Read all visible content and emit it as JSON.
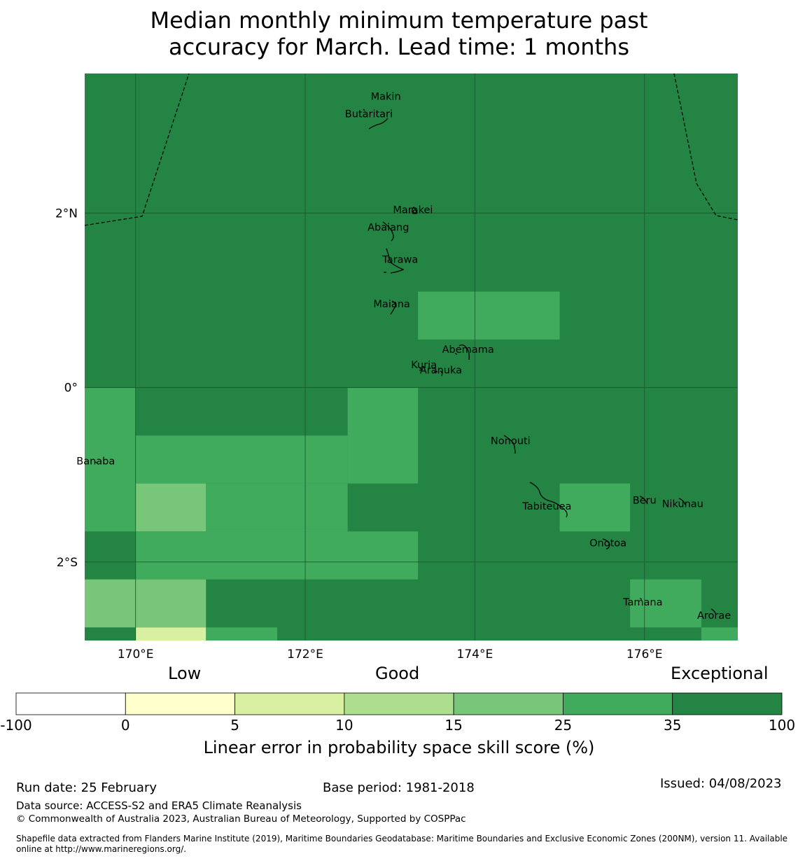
{
  "title_lines": [
    "Median monthly minimum temperature past",
    "accuracy for March. Lead time: 1 months"
  ],
  "map": {
    "lon_range": [
      169.4,
      177.1
    ],
    "lat_range": [
      -2.9,
      3.6
    ],
    "lon_ticks": [
      {
        "value": 170,
        "label": "170°E"
      },
      {
        "value": 172,
        "label": "172°E"
      },
      {
        "value": 174,
        "label": "174°E"
      },
      {
        "value": 176,
        "label": "176°E"
      }
    ],
    "lat_ticks": [
      {
        "value": 2,
        "label": "2°N"
      },
      {
        "value": 0,
        "label": "0°"
      },
      {
        "value": -2,
        "label": "2°S"
      }
    ],
    "background_category": 6,
    "cells": [
      {
        "lon0": 169.4,
        "lon1": 170.0,
        "lat0": -1.65,
        "lat1": 0.0,
        "category": 5
      },
      {
        "lon0": 172.5,
        "lon1": 173.33,
        "lat0": -1.1,
        "lat1": 0.0,
        "category": 5
      },
      {
        "lon0": 170.0,
        "lon1": 172.5,
        "lat0": -1.1,
        "lat1": -0.55,
        "category": 5
      },
      {
        "lon0": 170.0,
        "lon1": 170.83,
        "lat0": -1.65,
        "lat1": -1.1,
        "category": 4
      },
      {
        "lon0": 170.83,
        "lon1": 172.5,
        "lat0": -1.65,
        "lat1": -1.1,
        "category": 5
      },
      {
        "lon0": 170.0,
        "lon1": 173.33,
        "lat0": -2.2,
        "lat1": -1.65,
        "category": 5
      },
      {
        "lon0": 169.4,
        "lon1": 170.83,
        "lat0": -2.75,
        "lat1": -2.2,
        "category": 4
      },
      {
        "lon0": 170.0,
        "lon1": 170.83,
        "lat0": -2.9,
        "lat1": -2.75,
        "category": 2
      },
      {
        "lon0": 170.83,
        "lon1": 171.67,
        "lat0": -2.9,
        "lat1": -2.75,
        "category": 5
      },
      {
        "lon0": 173.33,
        "lon1": 175.0,
        "lat0": 0.55,
        "lat1": 1.1,
        "category": 5
      },
      {
        "lon0": 175.0,
        "lon1": 175.83,
        "lat0": -1.65,
        "lat1": -1.1,
        "category": 5
      },
      {
        "lon0": 175.83,
        "lon1": 176.67,
        "lat0": -2.75,
        "lat1": -2.2,
        "category": 5
      },
      {
        "lon0": 176.67,
        "lon1": 177.1,
        "lat0": -2.9,
        "lat1": -2.75,
        "category": 5
      }
    ],
    "places": [
      {
        "name": "Makin",
        "lon": 172.95,
        "lat": 3.3
      },
      {
        "name": "Butaritari",
        "lon": 172.75,
        "lat": 3.1
      },
      {
        "name": "Marakei",
        "lon": 173.27,
        "lat": 2.0
      },
      {
        "name": "Abaiang",
        "lon": 172.98,
        "lat": 1.8
      },
      {
        "name": "Tarawa",
        "lon": 173.12,
        "lat": 1.43
      },
      {
        "name": "Maiana",
        "lon": 173.02,
        "lat": 0.92
      },
      {
        "name": "Abemama",
        "lon": 173.92,
        "lat": 0.4
      },
      {
        "name": "Kuria",
        "lon": 173.4,
        "lat": 0.22
      },
      {
        "name": "Aranuka",
        "lon": 173.6,
        "lat": 0.16
      },
      {
        "name": "Nonouti",
        "lon": 174.42,
        "lat": -0.65
      },
      {
        "name": "Banaba",
        "lon": 169.53,
        "lat": -0.88
      },
      {
        "name": "Tabiteuea",
        "lon": 174.85,
        "lat": -1.4
      },
      {
        "name": "Beru",
        "lon": 176.0,
        "lat": -1.33
      },
      {
        "name": "Nikunau",
        "lon": 176.45,
        "lat": -1.37
      },
      {
        "name": "Onotoa",
        "lon": 175.57,
        "lat": -1.82
      },
      {
        "name": "Tamana",
        "lon": 175.98,
        "lat": -2.5
      },
      {
        "name": "Arorae",
        "lon": 176.82,
        "lat": -2.65
      }
    ]
  },
  "colorbar": {
    "category_labels": [
      "Low",
      "Good",
      "Exceptional"
    ],
    "bins": [
      {
        "from": -100,
        "to": 0,
        "color": "#ffffff"
      },
      {
        "from": 0,
        "to": 5,
        "color": "#ffffcc"
      },
      {
        "from": 5,
        "to": 10,
        "color": "#d9f0a3"
      },
      {
        "from": 10,
        "to": 15,
        "color": "#addd8e"
      },
      {
        "from": 15,
        "to": 25,
        "color": "#78c679"
      },
      {
        "from": 25,
        "to": 35,
        "color": "#41ab5d"
      },
      {
        "from": 35,
        "to": 100,
        "color": "#238443"
      }
    ],
    "tick_labels": [
      "-100",
      "0",
      "5",
      "10",
      "15",
      "25",
      "35",
      "100"
    ],
    "label": "Linear error in probability space skill score (%)"
  },
  "footer": {
    "run_date": "Run date: 25 February",
    "base_period": "Base period: 1981-2018",
    "issued": "Issued: 04/08/2023",
    "data_source": "Data source: ACCESS-S2 and ERA5 Climate Reanalysis",
    "copyright": "© Commonwealth of Australia 2023, Australian Bureau of Meteorology, Supported by COSPPac",
    "shapefile_line1": "Shapefile data extracted from Flanders Marine Institute (2019), Maritime Boundaries Geodatabase: Maritime Boundaries and Exclusive Economic Zones (200NM), version 11. Available",
    "shapefile_line2": "online at http://www.marineregions.org/."
  }
}
